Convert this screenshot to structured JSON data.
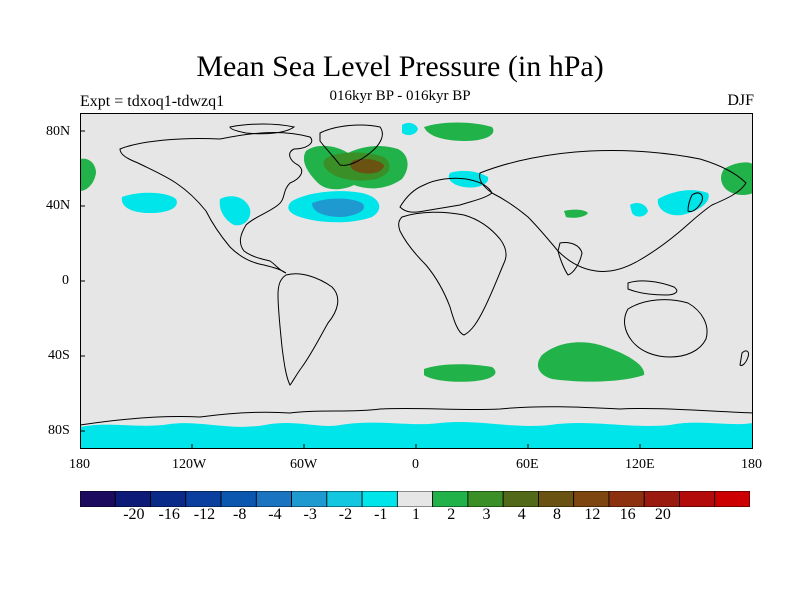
{
  "header": {
    "title": "Mean Sea Level Pressure (in hPa)",
    "subtitle": "016kyr BP - 016kyr BP",
    "left_label": "Expt = tdxoq1-tdwzq1",
    "right_label": "DJF"
  },
  "axes": {
    "y_ticks": [
      "80N",
      "40N",
      "0",
      "40S",
      "80S"
    ],
    "x_ticks": [
      "180",
      "120W",
      "60W",
      "0",
      "60E",
      "120E",
      "180"
    ]
  },
  "colorbar": {
    "colors": [
      "#1b0a5e",
      "#0d1a78",
      "#0a2a8a",
      "#0a3fa0",
      "#0b57b0",
      "#1b74c0",
      "#1e9ad0",
      "#12c7df",
      "#00e5ea",
      "#e6e6e6",
      "#22b24a",
      "#3a8f27",
      "#52691a",
      "#6a5312",
      "#7d4610",
      "#8c3010",
      "#9a1a10",
      "#b30a0a",
      "#cc0000"
    ],
    "labels": [
      "-20",
      "-16",
      "-12",
      "-8",
      "-4",
      "-3",
      "-2",
      "-1",
      "1",
      "2",
      "3",
      "4",
      "8",
      "12",
      "16",
      "20"
    ]
  },
  "map": {
    "background": "#e6e6e6",
    "land_outline": "#000000",
    "anomaly_colors": {
      "neg_light": "#00e5ea",
      "neg_mid": "#12c7df",
      "neg_dark": "#1e9ad0",
      "pos_light": "#22b24a",
      "pos_mid": "#3a8f27",
      "pos_dark": "#6a5312"
    }
  }
}
